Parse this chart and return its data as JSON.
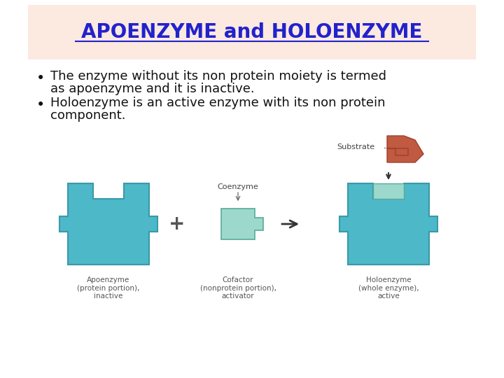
{
  "title": "APOENZYME and HOLOENZYME",
  "title_color": "#2222cc",
  "title_fontsize": 20,
  "header_bg_color": "#fce9e0",
  "bg_color": "#ffffff",
  "bullet1_line1": "The enzyme without its non protein moiety is termed",
  "bullet1_line2": "as apoenzyme and it is inactive.",
  "bullet2_line1": "Holoenzyme is an active enzyme with its non protein",
  "bullet2_line2": "component.",
  "bullet_fontsize": 13,
  "bullet_color": "#111111",
  "diagram_label1": "Apoenzyme\n(protein portion),\ninactive",
  "diagram_label2": "Coenzyme",
  "diagram_label3": "Cofactor\n(nonprotein portion),\nactivator",
  "diagram_label4": "Holoenzyme\n(whole enzyme),\nactive",
  "diagram_label5": "Substrate",
  "enzyme_color": "#4db8c8",
  "coenzyme_color": "#9dd8cc",
  "substrate_color": "#c05a40",
  "label_color": "#555555",
  "label_fontsize": 7.5,
  "plus_symbol": "+",
  "arrow_color": "#333333"
}
